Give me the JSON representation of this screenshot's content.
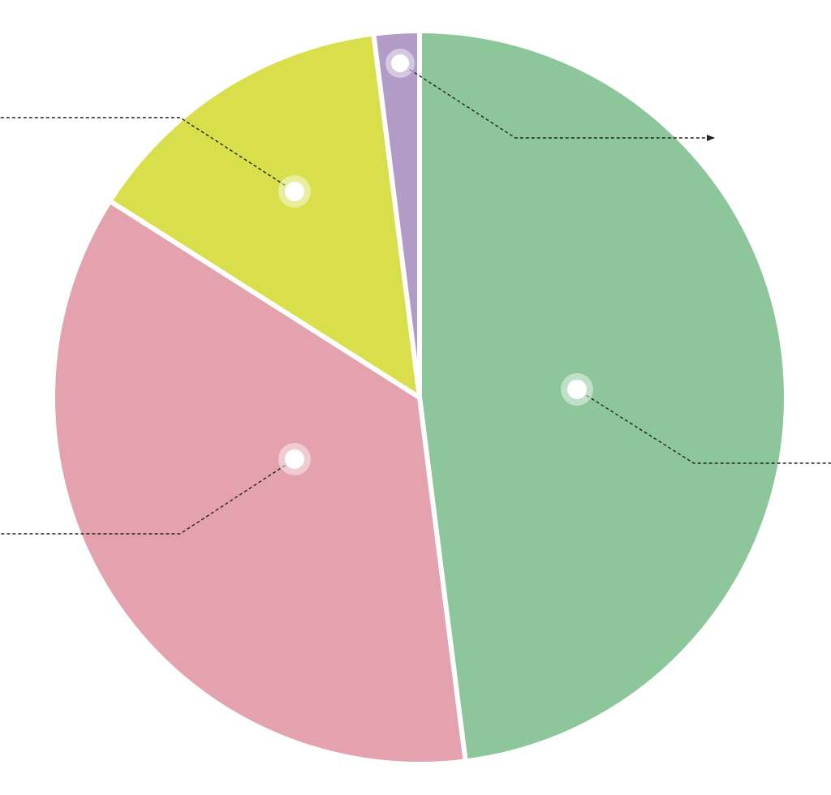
{
  "chart_data": {
    "type": "pie",
    "values": [
      48,
      36,
      14,
      2
    ],
    "colors": [
      "#8ec69c",
      "#e3a2ae",
      "#d9df4a",
      "#b39bc8"
    ]
  }
}
